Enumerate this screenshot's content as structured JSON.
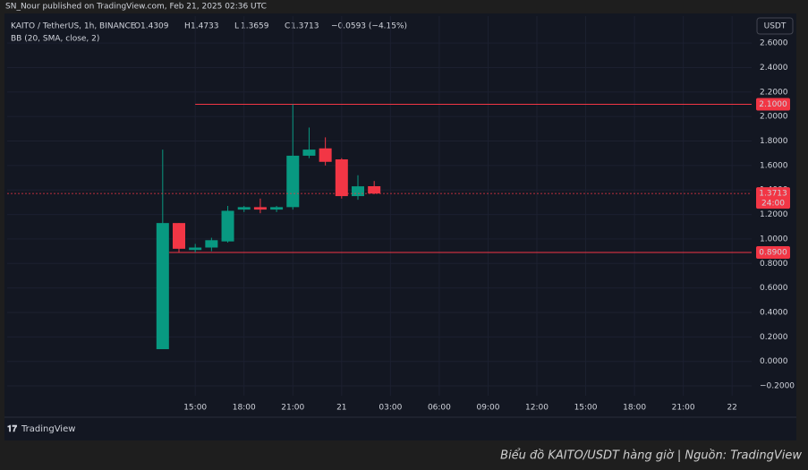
{
  "header": {
    "publisher": "SN_Nour published on TradingView.com, Feb 21, 2025 02:36 UTC",
    "brand": "TradingView"
  },
  "caption": "Biểu đồ KAITO/USDT hàng giờ | Nguồn: TradingView",
  "chart_data": {
    "type": "candlestick",
    "title": "KAITO / TetherUS, 1h, BINANCE",
    "indicator": "BB (20, SMA, close, 2)",
    "ohlc_labels": [
      "O",
      "H",
      "L",
      "C"
    ],
    "change": "−0.0593 (−4.15%)",
    "currency": "USDT",
    "up_color": "#089981",
    "down_color": "#f23645",
    "x": [
      13,
      14,
      15,
      16,
      17,
      18,
      19,
      20,
      21,
      22,
      23,
      24,
      25,
      26
    ],
    "open": [
      0.1,
      1.13,
      0.91,
      0.93,
      0.98,
      1.24,
      1.26,
      1.24,
      1.26,
      1.68,
      1.74,
      1.65,
      1.35,
      1.4309
    ],
    "high": [
      1.73,
      1.13,
      0.96,
      1.01,
      1.27,
      1.27,
      1.33,
      1.27,
      2.1,
      1.91,
      1.83,
      1.66,
      1.52,
      1.4733
    ],
    "low": [
      0.1,
      0.89,
      0.89,
      0.9,
      0.97,
      1.22,
      1.21,
      1.22,
      1.24,
      1.66,
      1.6,
      1.33,
      1.32,
      1.3659
    ],
    "close": [
      1.13,
      0.92,
      0.93,
      0.99,
      1.23,
      1.26,
      1.24,
      1.26,
      1.68,
      1.73,
      1.63,
      1.35,
      1.43,
      1.3713
    ],
    "xlim": [
      3.44,
      49.2
    ],
    "xticks": [
      {
        "value": 15,
        "label": "15:00"
      },
      {
        "value": 18,
        "label": "18:00"
      },
      {
        "value": 21,
        "label": "21:00"
      },
      {
        "value": 24,
        "label": "21"
      },
      {
        "value": 27,
        "label": "03:00"
      },
      {
        "value": 30,
        "label": "06:00"
      },
      {
        "value": 33,
        "label": "09:00"
      },
      {
        "value": 36,
        "label": "12:00"
      },
      {
        "value": 39,
        "label": "15:00"
      },
      {
        "value": 42,
        "label": "18:00"
      },
      {
        "value": 45,
        "label": "21:00"
      },
      {
        "value": 48,
        "label": "22"
      }
    ],
    "ylim": [
      -0.28,
      2.82
    ],
    "yticks": [
      {
        "value": 2.6,
        "label": "2.6000"
      },
      {
        "value": 2.4,
        "label": "2.4000"
      },
      {
        "value": 2.2,
        "label": "2.2000"
      },
      {
        "value": 2.0,
        "label": "2.0000"
      },
      {
        "value": 1.8,
        "label": "1.8000"
      },
      {
        "value": 1.6,
        "label": "1.6000"
      },
      {
        "value": 1.4,
        "label": "1.4000"
      },
      {
        "value": 1.2,
        "label": "1.2000"
      },
      {
        "value": 1.0,
        "label": "1.0000"
      },
      {
        "value": 0.8,
        "label": "0.8000"
      },
      {
        "value": 0.6,
        "label": "0.6000"
      },
      {
        "value": 0.4,
        "label": "0.4000"
      },
      {
        "value": 0.2,
        "label": "0.2000"
      },
      {
        "value": 0,
        "label": "0.0000"
      },
      {
        "value": -0.2,
        "label": "−0.2000"
      }
    ],
    "grid": true,
    "levels": [
      {
        "value": 2.1,
        "label": "2.1000",
        "from_x": 15,
        "color": "#f23645"
      },
      {
        "value": 0.89,
        "label": "0.8900",
        "from_x": 13.4,
        "color": "#f23645"
      }
    ],
    "last_price": {
      "value": 1.3713,
      "label": "1.3713",
      "countdown": "24:00",
      "color": "#f23645"
    }
  }
}
